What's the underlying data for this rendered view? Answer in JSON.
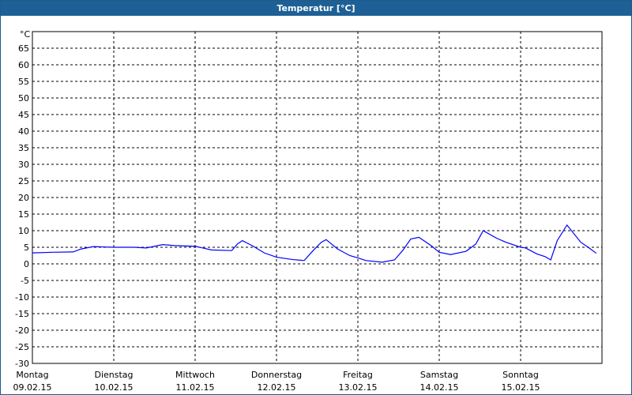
{
  "chart_data": {
    "type": "line",
    "title": "Temperatur [°C]",
    "y_unit": "°C",
    "xlim": [
      0,
      7
    ],
    "ylim": [
      -30,
      70
    ],
    "yticks": [
      -30,
      -25,
      -20,
      -15,
      -10,
      -5,
      0,
      5,
      10,
      15,
      20,
      25,
      30,
      35,
      40,
      45,
      50,
      55,
      60,
      65
    ],
    "xticks": [
      {
        "value": 0,
        "label": "Montag"
      },
      {
        "value": 1,
        "label": "Dienstag"
      },
      {
        "value": 2,
        "label": "Mittwoch"
      },
      {
        "value": 3,
        "label": "Donnerstag"
      },
      {
        "value": 4,
        "label": "Freitag"
      },
      {
        "value": 5,
        "label": "Samstag"
      },
      {
        "value": 6,
        "label": "Sonntag"
      }
    ],
    "xtick_dates": [
      "09.02.15",
      "10.02.15",
      "11.02.15",
      "12.02.15",
      "13.02.15",
      "14.02.15",
      "15.02.15"
    ],
    "grid": true,
    "series": [
      {
        "name": "Temperatur",
        "color": "#0000ff",
        "x": [
          0,
          0.25,
          0.5,
          0.6,
          0.75,
          1.0,
          1.25,
          1.4,
          1.6,
          1.75,
          2.0,
          2.2,
          2.45,
          2.52,
          2.58,
          2.7,
          2.85,
          3.0,
          3.2,
          3.34,
          3.45,
          3.55,
          3.61,
          3.75,
          3.9,
          4.0,
          4.1,
          4.3,
          4.45,
          4.55,
          4.65,
          4.75,
          4.9,
          5.0,
          5.14,
          5.33,
          5.45,
          5.54,
          5.7,
          5.82,
          6.0,
          6.06,
          6.2,
          6.3,
          6.37,
          6.45,
          6.57,
          6.74,
          6.83,
          6.93
        ],
        "values": [
          3.3,
          3.5,
          3.6,
          4.5,
          5.2,
          5,
          5,
          4.8,
          5.8,
          5.5,
          5.3,
          4.2,
          4,
          6,
          7,
          5.5,
          3.3,
          2,
          1.3,
          1,
          4,
          6.5,
          7.3,
          4.5,
          2.5,
          1.8,
          1,
          0.5,
          1.2,
          4,
          7.5,
          8,
          5.5,
          3.5,
          2.8,
          3.8,
          6,
          10,
          7.8,
          6.5,
          5,
          4.8,
          3,
          2.2,
          1.2,
          7,
          11.7,
          6.5,
          5,
          3.2
        ]
      }
    ]
  }
}
